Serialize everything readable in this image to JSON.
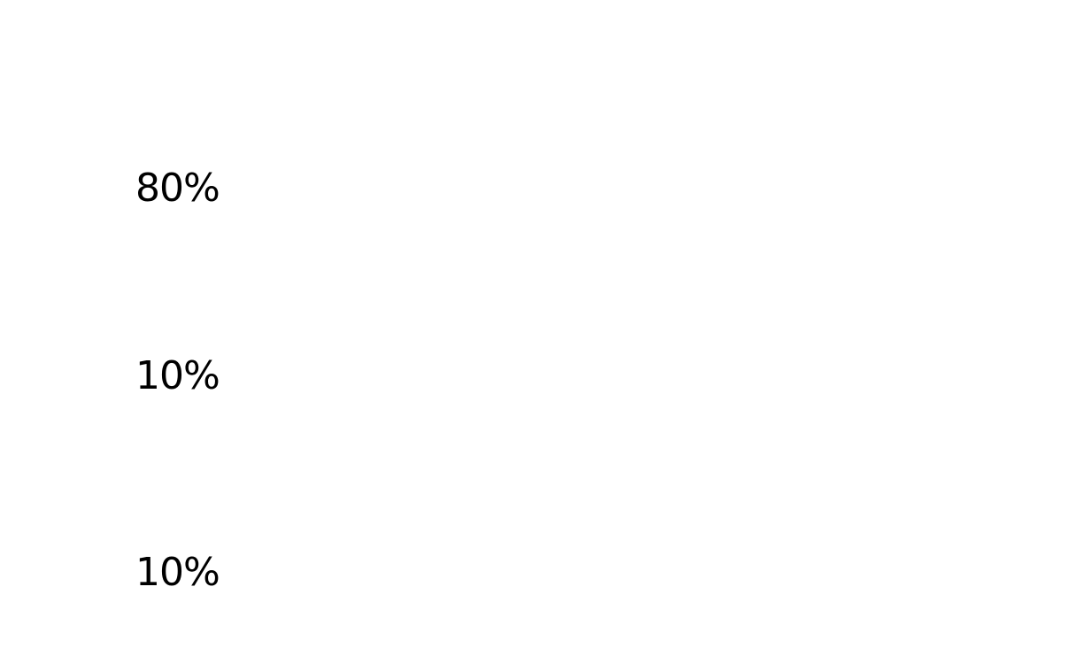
{
  "stats": [
    {
      "value": "80%"
    },
    {
      "value": "10%"
    },
    {
      "value": "10%"
    }
  ]
}
